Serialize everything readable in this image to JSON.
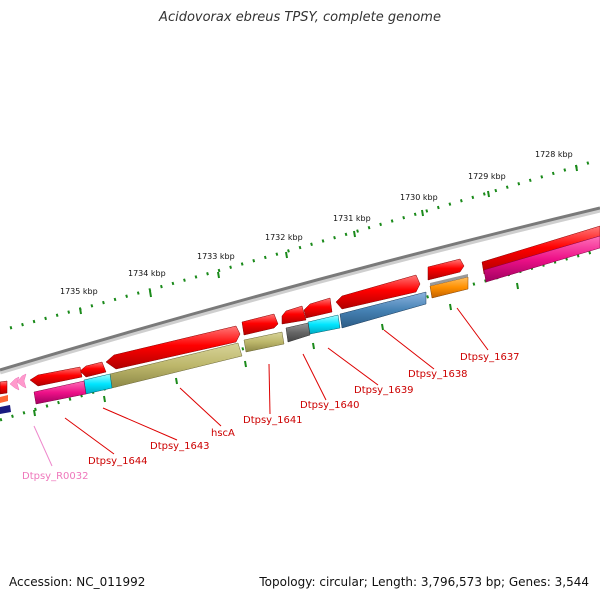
{
  "title": "Acidovorax ebreus TPSY, complete genome",
  "footer": {
    "accession": "Accession: NC_011992",
    "summary": "Topology: circular; Length: 3,796,573 bp; Genes: 3,544"
  },
  "scale_labels": [
    "1728 kbp",
    "1729 kbp",
    "1730 kbp",
    "1731 kbp",
    "1732 kbp",
    "1733 kbp",
    "1734 kbp",
    "1735 kbp"
  ],
  "gene_labels": [
    {
      "text": "Dtpsy_1637",
      "color": "#cc0000"
    },
    {
      "text": "Dtpsy_1638",
      "color": "#cc0000"
    },
    {
      "text": "Dtpsy_1639",
      "color": "#cc0000"
    },
    {
      "text": "Dtpsy_1640",
      "color": "#cc0000"
    },
    {
      "text": "Dtpsy_1641",
      "color": "#cc0000"
    },
    {
      "text": "hscA",
      "color": "#cc0000"
    },
    {
      "text": "Dtpsy_1643",
      "color": "#cc0000"
    },
    {
      "text": "Dtpsy_1644",
      "color": "#cc0000"
    },
    {
      "text": "Dtpsy_R0032",
      "color": "#ee77bb"
    }
  ],
  "colors": {
    "backbone": "#8a8a8a",
    "forward_gene": "#ff0000",
    "tick": "#1a8a1a",
    "label_line": "#dd0000"
  }
}
